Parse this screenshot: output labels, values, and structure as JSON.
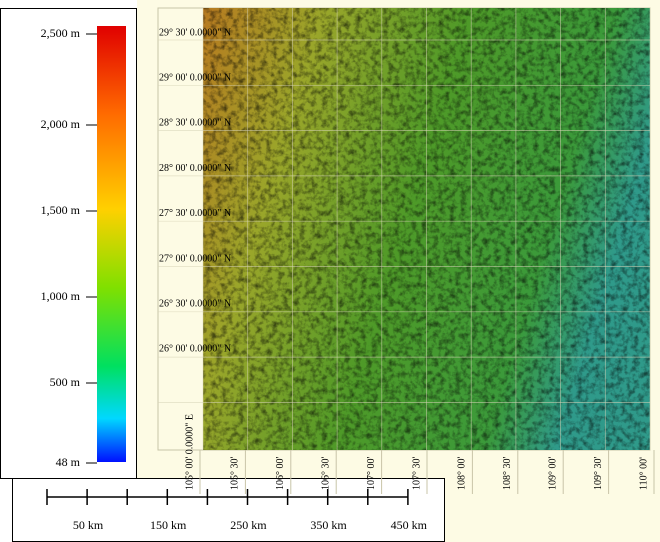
{
  "legend": {
    "labels": [
      "2,500 m",
      "2,000 m",
      "1,500 m",
      "1,000 m",
      "500 m",
      "48 m"
    ]
  },
  "map": {
    "latitude_labels": [
      "29° 30' 0.0000\" N",
      "29° 00' 0.0000\" N",
      "28° 30' 0.0000\" N",
      "28° 00' 0.0000\" N",
      "27° 30' 0.0000\" N",
      "27° 00' 0.0000\" N",
      "26° 30' 0.0000\" N",
      "26° 00' 0.0000\" N"
    ],
    "longitude_labels": [
      "105° 00' 0.0000\" E",
      "105° 30'",
      "106° 00'",
      "106° 30'",
      "107° 00'",
      "107° 30'",
      "108° 00'",
      "108° 30'",
      "109° 00'",
      "109° 30'",
      "110° 00'"
    ]
  },
  "scale_bar": {
    "labels": [
      "50 km",
      "150 km",
      "250 km",
      "350 km",
      "450 km"
    ]
  }
}
